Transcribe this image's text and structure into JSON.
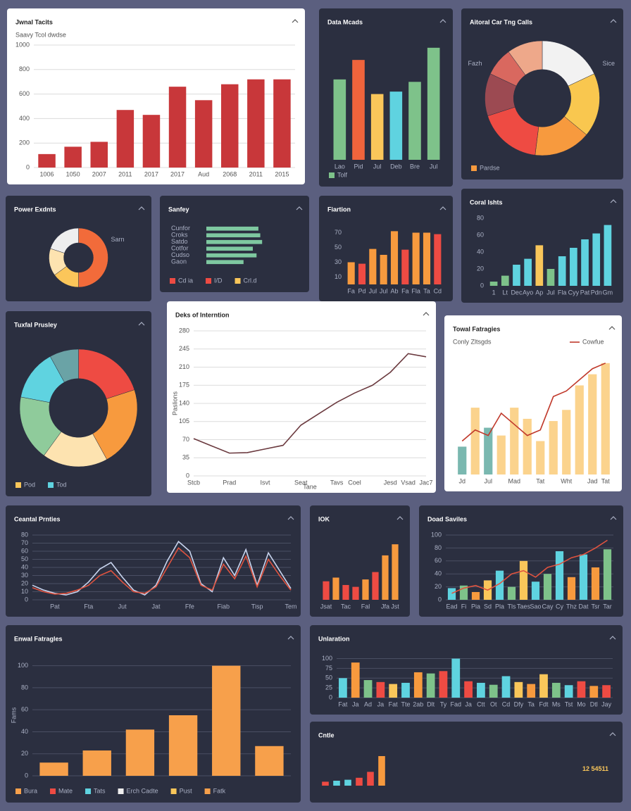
{
  "chart_data": [
    {
      "type": "bar",
      "title": "Jwnal Tacits",
      "subtitle": "Saavy Tcol dwdse",
      "theme": "light",
      "grid": true,
      "categories": [
        "1006",
        "1050",
        "2007",
        "2011",
        "2017",
        "2017",
        "Aud",
        "2068",
        "2011",
        "2015"
      ],
      "values": [
        110,
        170,
        210,
        470,
        430,
        660,
        550,
        680,
        720,
        720
      ],
      "color": "#c8373a",
      "ylim": [
        0,
        1000
      ],
      "yticks": [
        0,
        200,
        400,
        600,
        800,
        1000
      ]
    },
    {
      "type": "bar",
      "title": "Data Mcads",
      "theme": "dark",
      "categories": [
        "Lao",
        "Pid",
        "Jul",
        "Deb",
        "Bre",
        "Jul"
      ],
      "values": [
        66,
        82,
        54,
        56,
        64,
        92
      ],
      "colors": [
        "#7ec28a",
        "#f0643c",
        "#f9c65a",
        "#5fd3e0",
        "#7ec28a",
        "#7ec28a"
      ],
      "ylim": [
        0,
        100
      ],
      "legend": [
        {
          "name": "Tolf",
          "color": "#7ec28a"
        }
      ]
    },
    {
      "type": "donut",
      "title": "Aitoral Car Tng Calls",
      "theme": "dark",
      "values": [
        18,
        18,
        16,
        18,
        12,
        8,
        10
      ],
      "colors": [
        "#f2f2f2",
        "#f9c74f",
        "#f79a3e",
        "#ee4b43",
        "#9c4a52",
        "#d9685f",
        "#eea88a"
      ],
      "annotations": [
        "Fazh",
        "Sice"
      ],
      "legend": [
        {
          "name": "Pardse",
          "color": "#f79a3e"
        }
      ]
    },
    {
      "type": "donut",
      "title": "Power Exdnts",
      "theme": "dark",
      "values": [
        50,
        15,
        15,
        20
      ],
      "colors": [
        "#f26b3a",
        "#fbc65a",
        "#fde3b0",
        "#eeeeee"
      ],
      "annotations": [
        "Sarn"
      ]
    },
    {
      "type": "hbar",
      "title": "Sanfey",
      "theme": "dark",
      "categories": [
        "Cunfor",
        "Croks",
        "Satdo",
        "Cotfor",
        "Cudso",
        "Gaon"
      ],
      "values": [
        56,
        58,
        60,
        50,
        54,
        40
      ],
      "color": "#7ec8a0",
      "xlim": [
        0,
        100
      ],
      "legend": [
        {
          "name": "Cd ia",
          "color": "#ee4b43"
        },
        {
          "name": "I/D",
          "color": "#ee4b43"
        },
        {
          "name": "Crl.d",
          "color": "#f9c65a"
        }
      ]
    },
    {
      "type": "bar",
      "title": "Fiartion",
      "theme": "dark",
      "categories": [
        "Fa",
        "Pd",
        "Jul",
        "Jul",
        "Ab",
        "Fa",
        "Fla",
        "Ta",
        "Cd"
      ],
      "values": [
        30,
        28,
        48,
        40,
        72,
        47,
        70,
        70,
        68
      ],
      "colors": [
        "#f79a3e",
        "#ee4b43",
        "#f79a3e",
        "#f79a3e",
        "#f79a3e",
        "#ee4b43",
        "#f79a3e",
        "#f79a3e",
        "#ee4b43"
      ],
      "ylim": [
        0,
        80
      ],
      "yticks": [
        10,
        30,
        50,
        70
      ]
    },
    {
      "type": "bar",
      "title": "Coral Ishts",
      "theme": "dark",
      "categories": [
        "1",
        "Lt",
        "Dec",
        "Ayo",
        "Ap",
        "Jul",
        "Fla",
        "Cyy",
        "Pat",
        "Pdn",
        "Gm"
      ],
      "values": [
        5,
        12,
        25,
        32,
        48,
        20,
        35,
        45,
        55,
        62,
        72
      ],
      "colors": [
        "#7ec28a",
        "#7ec28a",
        "#5fd3e0",
        "#5fd3e0",
        "#f9c65a",
        "#7ec28a",
        "#5fd3e0",
        "#5fd3e0",
        "#5fd3e0",
        "#5fd3e0",
        "#5fd3e0"
      ],
      "ylim": [
        0,
        80
      ],
      "yticks": [
        0,
        20,
        40,
        60,
        80
      ]
    },
    {
      "type": "donut",
      "title": "Tuxfal Prusley",
      "theme": "dark",
      "values": [
        20,
        22,
        18,
        18,
        14,
        8
      ],
      "colors": [
        "#ee4b43",
        "#f79a3e",
        "#fde3b0",
        "#8fcb9b",
        "#5fd3e0",
        "#6aa3a6"
      ],
      "legend": [
        {
          "name": "Pod",
          "color": "#f9c65a"
        },
        {
          "name": "Tod",
          "color": "#5fd3e0"
        }
      ]
    },
    {
      "type": "line",
      "title": "Deks of Interntion",
      "theme": "light",
      "grid": true,
      "xlabel": "Tane",
      "ylabel": "Paslions",
      "categories": [
        "Stcb",
        null,
        "Prad",
        null,
        "Isvt",
        null,
        "Seat",
        null,
        "Tavs",
        "Coel",
        null,
        "Jesd",
        "Vsad",
        "Jac7"
      ],
      "series": [
        {
          "color": "#6b3a3f",
          "values": [
            72,
            58,
            44,
            45,
            52,
            59,
            98,
            120,
            142,
            160,
            175,
            200,
            236,
            230
          ]
        }
      ],
      "ylim": [
        0,
        280
      ],
      "yticks": [
        0,
        35,
        70,
        105,
        140,
        175,
        210,
        245,
        280
      ]
    },
    {
      "type": "combo",
      "title": "Towal Fatragies",
      "subtitle": "Conly Zltsgds",
      "theme": "light",
      "categories": [
        "Jd",
        null,
        "Jul",
        null,
        "Mad",
        null,
        "Tat",
        null,
        "Wht",
        null,
        "Jad",
        "Tat"
      ],
      "values": [
        25,
        60,
        42,
        35,
        60,
        50,
        30,
        48,
        58,
        80,
        90,
        100
      ],
      "colors": [
        "#7ab8b0",
        "#fbd38d",
        "#7ab8b0",
        "#fbd38d",
        "#fbd38d",
        "#fbd38d",
        "#fbd38d",
        "#fbd38d",
        "#fbd38d",
        "#fbd38d",
        "#fbd38d",
        "#fbd38d"
      ],
      "series": [
        {
          "name": "Cowfue",
          "color": "#c0392b",
          "values": [
            30,
            40,
            35,
            55,
            45,
            35,
            40,
            70,
            75,
            85,
            95,
            100
          ]
        }
      ],
      "ylim": [
        0,
        110
      ]
    },
    {
      "type": "line",
      "title": "Ceantal Prnties",
      "theme": "dark",
      "grid": true,
      "categories": [
        null,
        null,
        "Pat",
        null,
        null,
        "Fta",
        null,
        null,
        "Jut",
        null,
        null,
        "Jat",
        null,
        null,
        "Ffe",
        null,
        null,
        "Fiab",
        null,
        null,
        "Tisp",
        null,
        null,
        "Tem"
      ],
      "series": [
        {
          "color": "#c8d4ee",
          "values": [
            18,
            12,
            8,
            6,
            10,
            22,
            38,
            46,
            28,
            12,
            6,
            18,
            48,
            72,
            60,
            20,
            10,
            52,
            30,
            62,
            18,
            58,
            36,
            14
          ]
        },
        {
          "color": "#e0533f",
          "values": [
            15,
            10,
            7,
            8,
            12,
            18,
            30,
            36,
            22,
            10,
            8,
            16,
            40,
            64,
            52,
            18,
            12,
            44,
            26,
            54,
            16,
            50,
            30,
            12
          ]
        }
      ],
      "ylim": [
        0,
        80
      ],
      "yticks": [
        0,
        10,
        20,
        30,
        40,
        50,
        60,
        70,
        80
      ]
    },
    {
      "type": "bar",
      "title": "IOK",
      "theme": "dark",
      "categories": [
        "Jsat",
        null,
        "Tac",
        null,
        "Fal",
        null,
        "Jfa",
        "Jst"
      ],
      "values": [
        20,
        24,
        16,
        14,
        22,
        30,
        48,
        60
      ],
      "colors": [
        "#ee4b43",
        "#f79a3e",
        "#ee4b43",
        "#ee4b43",
        "#f79a3e",
        "#ee4b43",
        "#f79a3e",
        "#f79a3e"
      ],
      "ylim": [
        0,
        70
      ]
    },
    {
      "type": "combo",
      "title": "Doad Saviles",
      "theme": "dark",
      "grid": true,
      "categories": [
        "Ead",
        "Fi",
        "Pia",
        "Sd",
        "Pla",
        "Tls",
        "Taes",
        "Sao",
        "Cay",
        "Cy",
        "Thz",
        "Dat",
        "Tsr",
        "Tar"
      ],
      "values": [
        18,
        22,
        12,
        30,
        45,
        20,
        60,
        28,
        40,
        75,
        35,
        70,
        50,
        78
      ],
      "colors": [
        "#5fd3e0",
        "#7ec28a",
        "#f79a3e",
        "#f9c65a",
        "#5fd3e0",
        "#7ec28a",
        "#f9c65a",
        "#5fd3e0",
        "#7ec28a",
        "#5fd3e0",
        "#f79a3e",
        "#5fd3e0",
        "#f79a3e",
        "#7ec28a"
      ],
      "series": [
        {
          "color": "#e0533f",
          "values": [
            10,
            18,
            22,
            15,
            25,
            40,
            45,
            35,
            50,
            55,
            65,
            70,
            80,
            92
          ]
        }
      ],
      "ylim": [
        0,
        100
      ],
      "yticks": [
        0,
        20,
        40,
        60,
        80,
        100
      ]
    },
    {
      "type": "bar",
      "title": "Enwal Fatragles",
      "theme": "dark",
      "grid": true,
      "ylabel": "Fams",
      "values": [
        12,
        23,
        42,
        55,
        100,
        27
      ],
      "color": "#f7a04b",
      "ylim": [
        0,
        110
      ],
      "yticks": [
        0,
        20,
        40,
        60,
        80,
        100
      ],
      "legend": [
        {
          "name": "Bura",
          "color": "#f7a04b"
        },
        {
          "name": "Mate",
          "color": "#ee4b43"
        },
        {
          "name": "Tats",
          "color": "#5fd3e0"
        },
        {
          "name": "Erch Cadte",
          "color": "#eeeeee"
        },
        {
          "name": "Pust",
          "color": "#f9c65a"
        },
        {
          "name": "Fatk",
          "color": "#f7a04b"
        }
      ]
    },
    {
      "type": "bar",
      "title": "Unlaration",
      "theme": "dark",
      "grid": true,
      "categories": [
        "Fat",
        "Ja",
        "Ad",
        "Ja",
        "Fat",
        "Tte",
        "2ab",
        "Dlt",
        "Ty",
        "Fad",
        "Ja",
        "Ctt",
        "Ot",
        "Cd",
        "Dfy",
        "Ta",
        "Fdt",
        "Ms",
        "Tst",
        "Mo",
        "Dtl",
        "Jay"
      ],
      "values": [
        50,
        90,
        45,
        40,
        35,
        38,
        65,
        62,
        68,
        100,
        42,
        38,
        33,
        55,
        40,
        35,
        60,
        38,
        32,
        42,
        30,
        32
      ],
      "colors": [
        "#5fd3e0",
        "#f79a3e",
        "#7ec28a",
        "#ee4b43",
        "#f9c65a",
        "#5fd3e0",
        "#f79a3e",
        "#7ec28a",
        "#ee4b43",
        "#5fd3e0",
        "#ee4b43",
        "#5fd3e0",
        "#7ec28a",
        "#5fd3e0",
        "#f9c65a",
        "#f79a3e",
        "#f9c65a",
        "#7ec28a",
        "#5fd3e0",
        "#ee4b43",
        "#f79a3e",
        "#ee4b43"
      ],
      "ylim": [
        0,
        110
      ],
      "yticks": [
        0,
        25,
        50,
        75,
        100
      ]
    },
    {
      "type": "kpi",
      "title": "Cntle",
      "theme": "dark",
      "kpi": "12 54511",
      "values": [
        4,
        5,
        6,
        8,
        14,
        30
      ],
      "colors": [
        "#ee4b43",
        "#5fd3e0",
        "#5fd3e0",
        "#ee4b43",
        "#ee4b43",
        "#f79a3e"
      ],
      "ylim": [
        0,
        35
      ]
    }
  ]
}
